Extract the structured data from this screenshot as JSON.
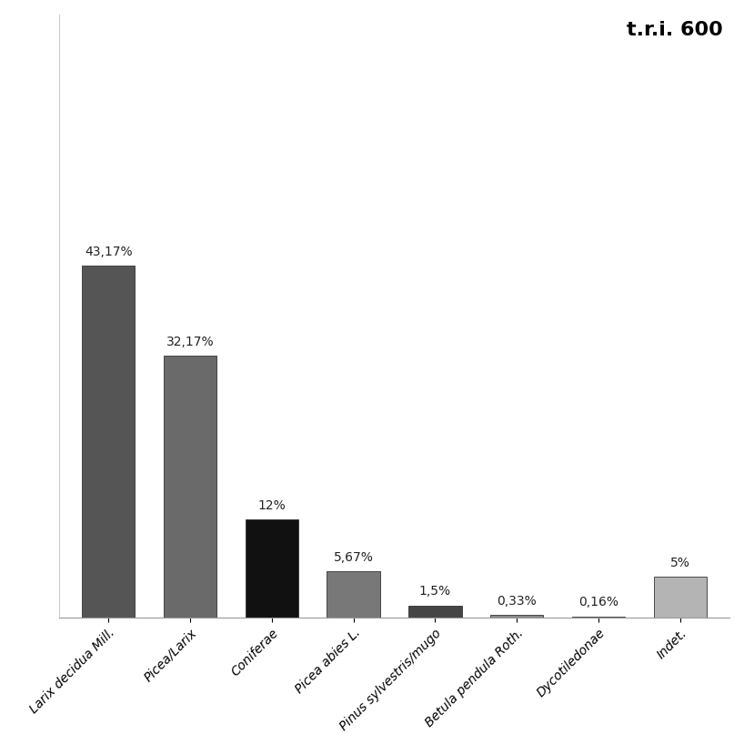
{
  "chart_data": {
    "type": "bar",
    "title": "t.r.i. 600",
    "categories": [
      "Larix decidua Mill.",
      "Picea/Larix",
      "Coniferae",
      "Picea abies L.",
      "Pinus sylvestris/mugo",
      "Betula pendula Roth.",
      "Dycotiledonae",
      "Indet."
    ],
    "values": [
      43.17,
      32.17,
      12,
      5.67,
      1.5,
      0.33,
      0.16,
      5
    ],
    "value_labels": [
      "43,17%",
      "32,17%",
      "12%",
      "5,67%",
      "1,5%",
      "0,33%",
      "0,16%",
      "5%"
    ],
    "colors": [
      "#555555",
      "#6a6a6a",
      "#111111",
      "#787878",
      "#454545",
      "#8a8a8a",
      "#9a9a9a",
      "#b4b4b4"
    ],
    "ylim": [
      0,
      74
    ],
    "yticks": [],
    "grid": false,
    "data_labels": true,
    "tick_labels": "x"
  }
}
